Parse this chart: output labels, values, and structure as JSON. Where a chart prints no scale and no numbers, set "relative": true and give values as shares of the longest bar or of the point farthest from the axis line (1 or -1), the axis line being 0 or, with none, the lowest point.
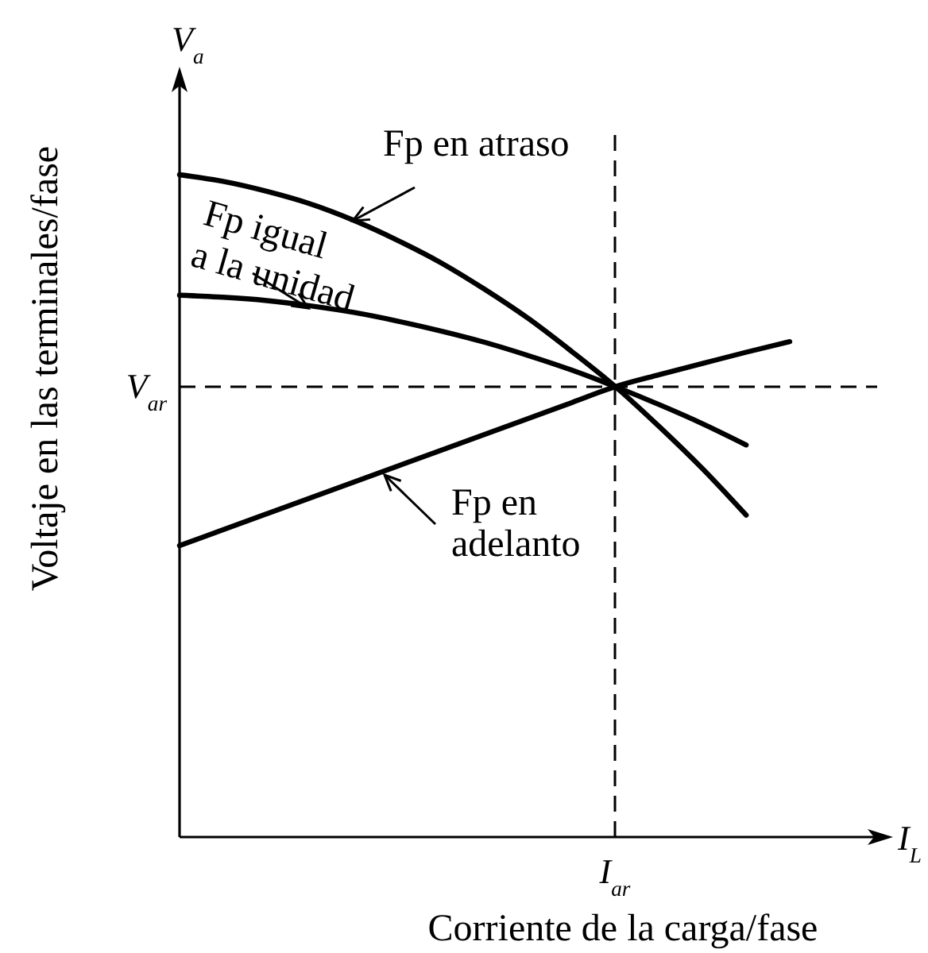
{
  "chart_data": {
    "type": "line",
    "relative": true,
    "xlabel": "Corriente de la carga/fase",
    "ylabel": "Voltaje en las terminales/fase",
    "categories": [
      null,
      null,
      null,
      null,
      null,
      null,
      null,
      null,
      null,
      null,
      null,
      null,
      null,
      null,
      null
    ],
    "series": [
      {
        "name": "Fp en atraso",
        "color": "#000000",
        "values": [
          1,
          0.99,
          0.975,
          0.956,
          0.931,
          0.901,
          0.867,
          0.827,
          0.783,
          0.733,
          0.68,
          0.62,
          0.556,
          0.486,
          null
        ]
      },
      {
        "name": "Fp igual a la unidad",
        "color": "#000000",
        "values": [
          0.818,
          0.815,
          0.81,
          0.802,
          0.792,
          0.779,
          0.764,
          0.747,
          0.727,
          0.705,
          0.68,
          0.653,
          0.624,
          0.592,
          null
        ]
      },
      {
        "name": "Fp en adelanto",
        "color": "#000000",
        "values": [
          0.44,
          0.464,
          0.488,
          0.512,
          0.536,
          0.56,
          0.584,
          0.608,
          0.632,
          0.656,
          0.68,
          0.698,
          0.715,
          0.732,
          0.748
        ]
      }
    ],
    "ref_lines": [
      {
        "axis": "y",
        "value": 0.68,
        "label": "V$_{ar}$",
        "line_style": "dashed"
      }
    ],
    "annotations": [
      "V$_{a}$",
      "I$_{L}$",
      "I$_{ar}$"
    ]
  }
}
